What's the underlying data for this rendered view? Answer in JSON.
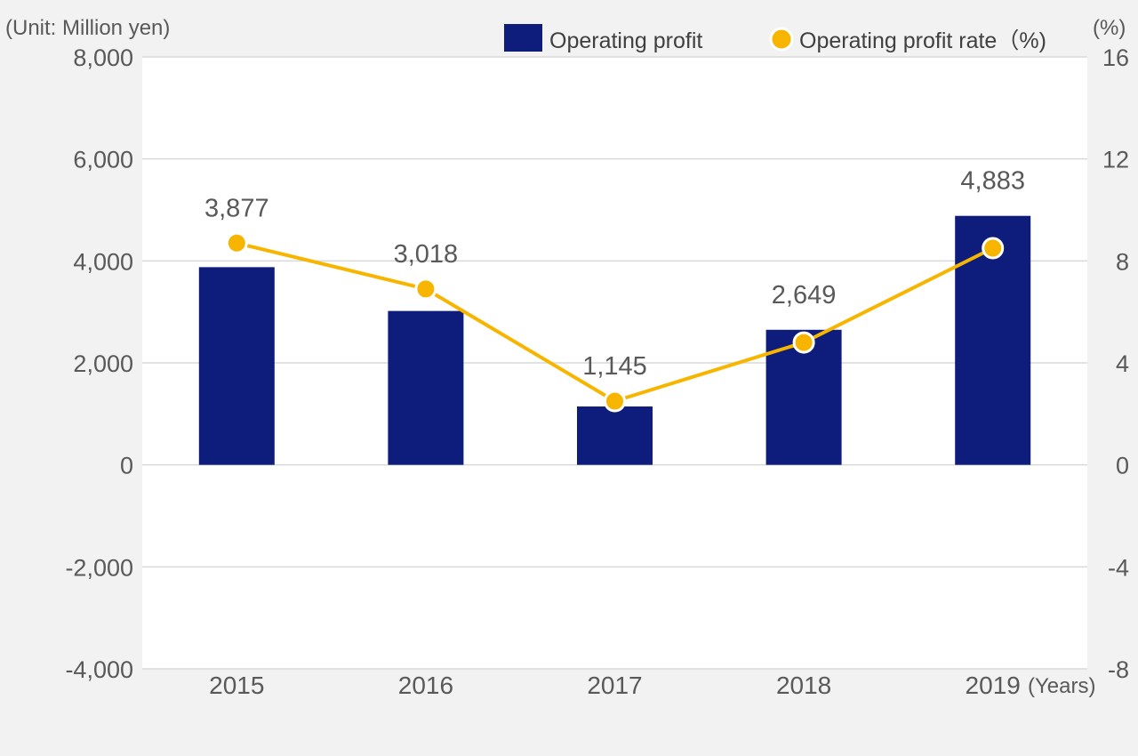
{
  "chart_data": {
    "type": "bar+line",
    "unit_left": "(Unit: Million yen)",
    "unit_right": "(%)",
    "x_unit": "(Years)",
    "categories": [
      "2015",
      "2016",
      "2017",
      "2018",
      "2019"
    ],
    "series": [
      {
        "name": "Operating profit",
        "kind": "bar",
        "axis": "left",
        "values": [
          3877,
          3018,
          1145,
          2649,
          4883
        ],
        "labels": [
          "3,877",
          "3,018",
          "1,145",
          "2,649",
          "4,883"
        ],
        "color": "#0e1c7c"
      },
      {
        "name": "Operating profit rate（%)",
        "kind": "line",
        "axis": "right",
        "values": [
          8.7,
          6.9,
          2.5,
          4.8,
          8.5
        ],
        "color": "#f7b500"
      }
    ],
    "left_axis": {
      "min": -4000,
      "max": 8000,
      "ticks": [
        -4000,
        -2000,
        0,
        2000,
        4000,
        6000,
        8000
      ],
      "tick_labels": [
        "-4,000",
        "-2,000",
        "0",
        "2,000",
        "4,000",
        "6,000",
        "8,000"
      ]
    },
    "right_axis": {
      "min": -8,
      "max": 16,
      "ticks": [
        -8,
        -4,
        0,
        4,
        8,
        12,
        16
      ],
      "tick_labels": [
        "-8",
        "-4",
        "0",
        "4",
        "8",
        "12",
        "16"
      ]
    },
    "grid": true,
    "legend_position": "top-right"
  }
}
